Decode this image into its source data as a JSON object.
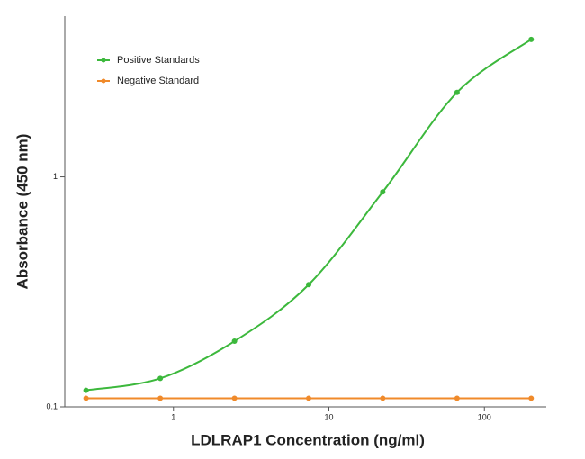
{
  "chart_data": {
    "type": "scatter",
    "x_label": "LDLRAP1 Concentration (ng/ml)",
    "y_label": "Absorbance (450 nm)",
    "x_log": true,
    "y_log": true,
    "xlim": [
      0.2,
      250
    ],
    "ylim": [
      0.1,
      5
    ],
    "xticks": [
      1,
      10,
      100
    ],
    "yticks": [
      0.1,
      1
    ],
    "legend": "top-left",
    "series": [
      {
        "name": "Positive Standards",
        "color": "#3cb83c",
        "x": [
          0.274,
          0.823,
          2.47,
          7.41,
          22.2,
          66.7,
          200
        ],
        "values": [
          0.118,
          0.133,
          0.193,
          0.34,
          0.86,
          2.33,
          3.96
        ]
      },
      {
        "name": "Negative Standard",
        "color": "#f08a2a",
        "x": [
          0.274,
          0.823,
          2.47,
          7.41,
          22.2,
          66.7,
          200
        ],
        "values": [
          0.109,
          0.109,
          0.109,
          0.109,
          0.109,
          0.109,
          0.109
        ]
      }
    ]
  }
}
